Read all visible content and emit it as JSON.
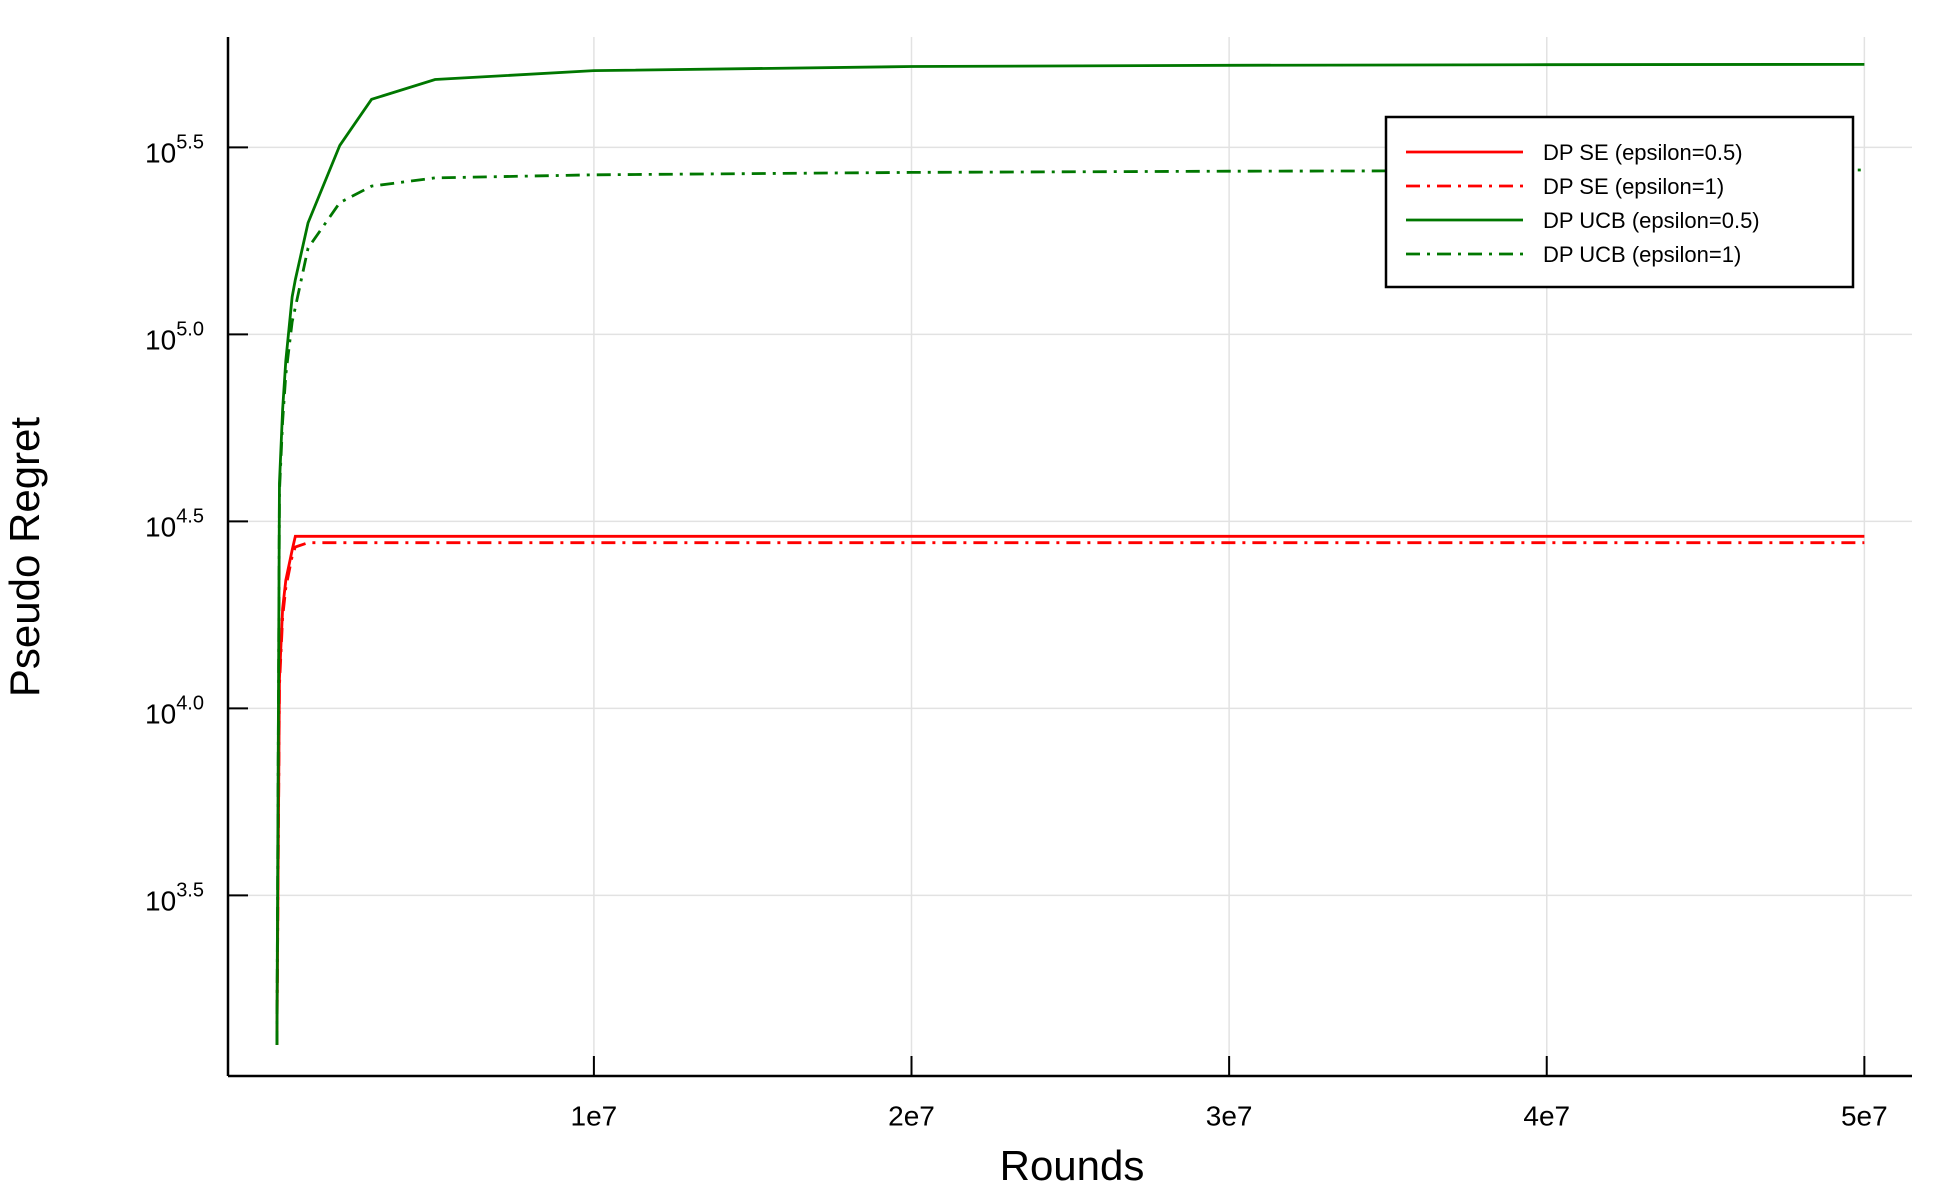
{
  "chart_data": {
    "type": "line",
    "xlabel": "Rounds",
    "ylabel": "Pseudo Regret",
    "x": [
      20000,
      100000,
      200000,
      300000,
      500000,
      600000,
      1000000,
      2000000,
      3000000,
      5000000,
      10000000,
      20000000,
      30000000,
      40000000,
      50000000
    ],
    "series": [
      {
        "name": "DP SE (epsilon=0.5)",
        "color": "#ff0000",
        "dash": "solid",
        "values": [
          1260,
          12000,
          18500,
          22000,
          26500,
          28840,
          28840,
          28840,
          28840,
          28840,
          28840,
          28840,
          28840,
          28840,
          28840
        ]
      },
      {
        "name": "DP SE (epsilon=1)",
        "color": "#ff0000",
        "dash": "dashdot",
        "values": [
          1260,
          11500,
          17500,
          21000,
          25500,
          27000,
          27730,
          27730,
          27730,
          27730,
          27730,
          27730,
          27730,
          27730,
          27730
        ]
      },
      {
        "name": "DP UCB (epsilon=0.5)",
        "color": "#007700",
        "dash": "solid",
        "values": [
          1260,
          40000,
          63000,
          85000,
          126000,
          140000,
          198600,
          320000,
          425000,
          480000,
          507000,
          520000,
          524000,
          526000,
          527000
        ]
      },
      {
        "name": "DP UCB (epsilon=1)",
        "color": "#007700",
        "dash": "dashdot",
        "values": [
          1260,
          38000,
          58600,
          78000,
          108000,
          118000,
          170000,
          225000,
          249000,
          262000,
          267000,
          271000,
          273000,
          274000,
          275000
        ]
      }
    ],
    "xlim": [
      -1520000,
      51500000
    ],
    "xticks": [
      {
        "value": 10000000,
        "label": "1e7"
      },
      {
        "value": 20000000,
        "label": "2e7"
      },
      {
        "value": 30000000,
        "label": "3e7"
      },
      {
        "value": 40000000,
        "label": "4e7"
      },
      {
        "value": 50000000,
        "label": "5e7"
      }
    ],
    "ylim": [
      1040,
      623700
    ],
    "yscale": "log",
    "yticks": [
      {
        "value": 3162.28,
        "label": "10",
        "exponent": "3.5"
      },
      {
        "value": 10000,
        "label": "10",
        "exponent": "4.0"
      },
      {
        "value": 31622.8,
        "label": "10",
        "exponent": "4.5"
      },
      {
        "value": 100000,
        "label": "10",
        "exponent": "5.0"
      },
      {
        "value": 316228,
        "label": "10",
        "exponent": "5.5"
      }
    ],
    "grid": true,
    "legend": "top-right"
  }
}
